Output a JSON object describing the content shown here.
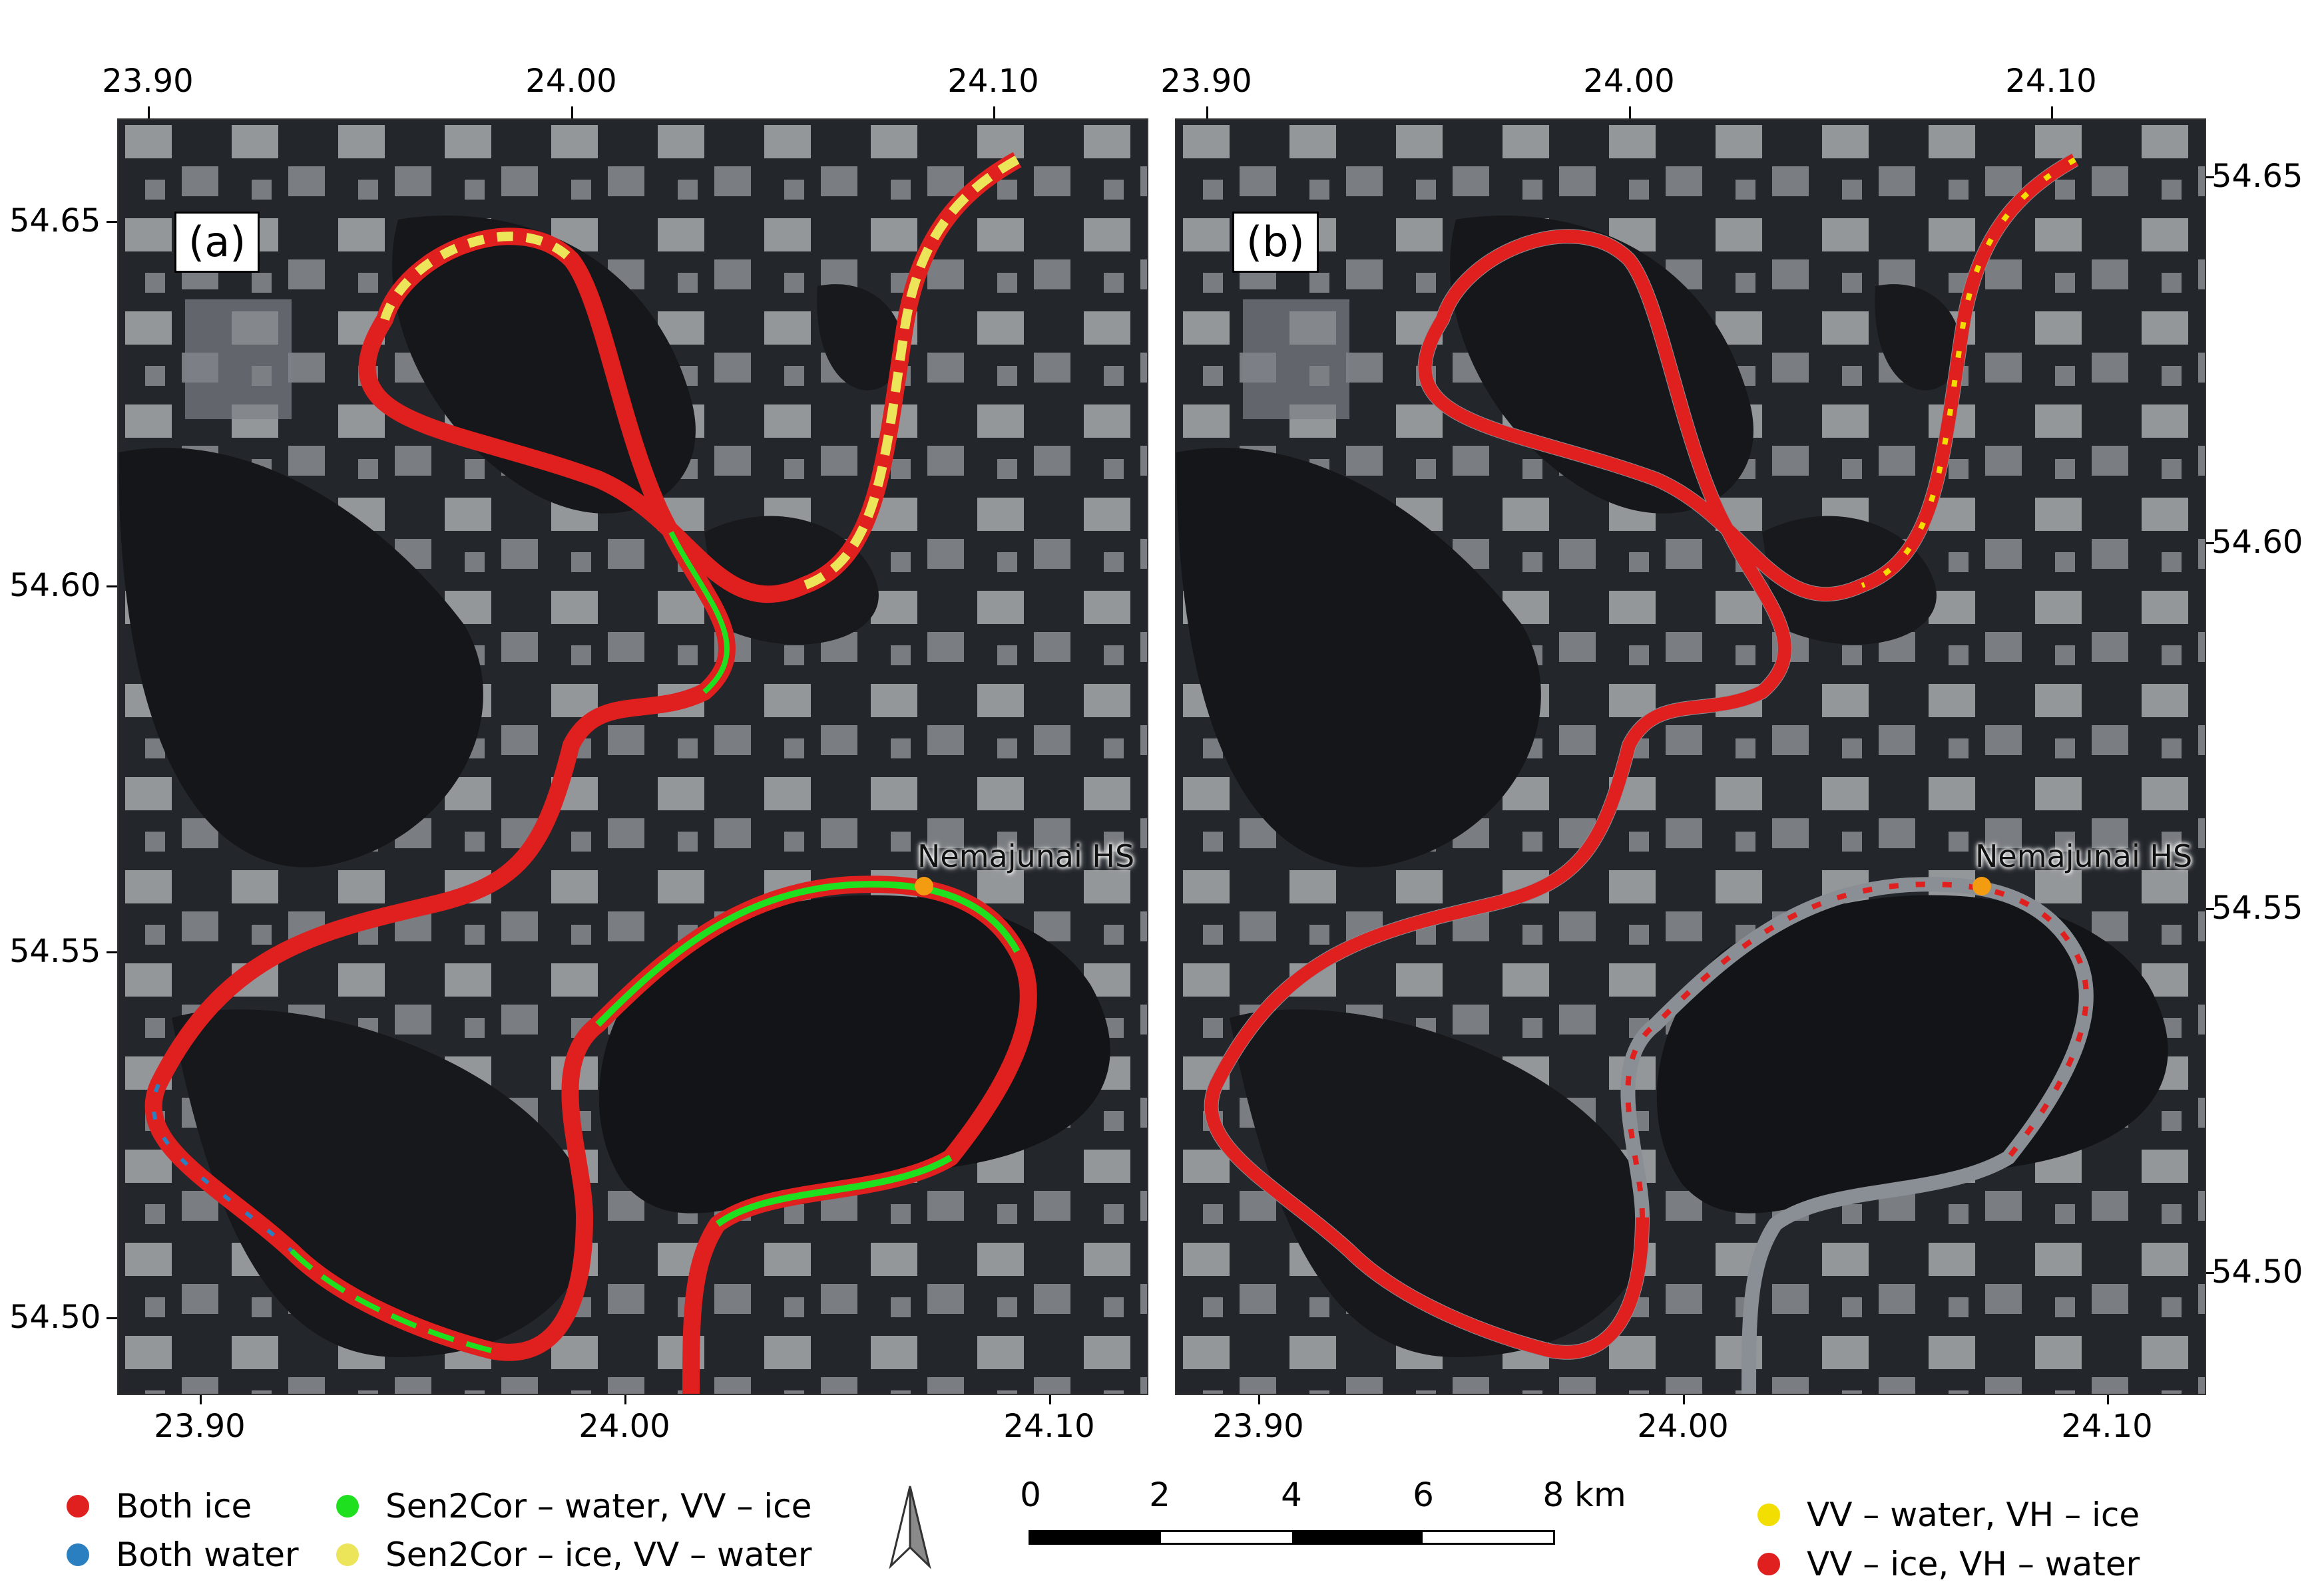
{
  "panels": [
    {
      "id": "a",
      "label": "(a)",
      "station": "Nemajunai HS"
    },
    {
      "id": "b",
      "label": "(b)",
      "station": "Nemajunai HS"
    }
  ],
  "axes": {
    "panel_a_top_ticks": [
      "23.90",
      "24.00",
      "24.10"
    ],
    "panel_a_bottom_ticks": [
      "23.90",
      "24.00",
      "24.10"
    ],
    "panel_a_left_ticks": [
      "54.65",
      "54.60",
      "54.55",
      "54.50"
    ],
    "panel_b_top_ticks": [
      "23.90",
      "24.00",
      "24.10"
    ],
    "panel_b_bottom_ticks": [
      "23.90",
      "24.00",
      "24.10"
    ],
    "panel_b_right_ticks": [
      "54.65",
      "54.60",
      "54.55",
      "54.50"
    ]
  },
  "legend_left": [
    {
      "label": "Both ice",
      "color": "#e01f1f"
    },
    {
      "label": "Both water",
      "color": "#2a7fc0"
    },
    {
      "label": "Sen2Cor – water, VV – ice",
      "color": "#1fe01f"
    },
    {
      "label": "Sen2Cor – ice, VV – water",
      "color": "#ece55a"
    }
  ],
  "legend_right": [
    {
      "label": "VV – water,  VH – ice",
      "color": "#f2de00"
    },
    {
      "label": "VV – ice,  VH – water",
      "color": "#e01f1f"
    }
  ],
  "scale_bar": {
    "labels": [
      "0",
      "2",
      "4",
      "6",
      "8 km"
    ]
  },
  "north_arrow_icon": "north-arrow-icon",
  "colors": {
    "both_ice": "#e01f1f",
    "both_water": "#2a7fc0",
    "sen2cor_water_vv_ice": "#1fe01f",
    "sen2cor_ice_vv_water": "#ece55a",
    "station": "#f39c12"
  }
}
